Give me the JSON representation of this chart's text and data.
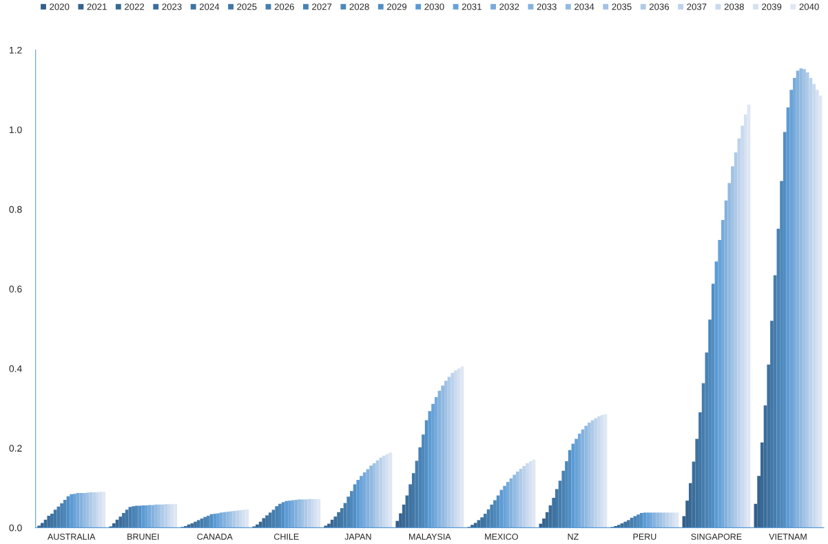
{
  "chart_data": {
    "type": "bar",
    "categories": [
      "AUSTRALIA",
      "BRUNEI",
      "CANADA",
      "CHILE",
      "JAPAN",
      "MALAYSIA",
      "MEXICO",
      "NZ",
      "PERU",
      "SINGAPORE",
      "VIETNAM"
    ],
    "series": [
      {
        "name": "2020",
        "color": "#325f8a",
        "values": [
          0.005,
          0.003,
          0.002,
          0.003,
          0.005,
          0.017,
          0.002,
          0.01,
          0.002,
          0.029,
          0.06
        ]
      },
      {
        "name": "2021",
        "color": "#35638f",
        "values": [
          0.012,
          0.011,
          0.004,
          0.008,
          0.01,
          0.036,
          0.007,
          0.023,
          0.004,
          0.068,
          0.13
        ]
      },
      {
        "name": "2022",
        "color": "#386894",
        "values": [
          0.02,
          0.02,
          0.008,
          0.015,
          0.02,
          0.058,
          0.012,
          0.039,
          0.007,
          0.112,
          0.214
        ]
      },
      {
        "name": "2023",
        "color": "#3b6d9a",
        "values": [
          0.03,
          0.028,
          0.011,
          0.024,
          0.028,
          0.081,
          0.019,
          0.056,
          0.011,
          0.166,
          0.307
        ]
      },
      {
        "name": "2024",
        "color": "#3e72a0",
        "values": [
          0.035,
          0.037,
          0.015,
          0.031,
          0.039,
          0.109,
          0.026,
          0.075,
          0.015,
          0.223,
          0.41
        ]
      },
      {
        "name": "2025",
        "color": "#4177a6",
        "values": [
          0.045,
          0.045,
          0.019,
          0.038,
          0.049,
          0.137,
          0.035,
          0.097,
          0.019,
          0.29,
          0.52
        ]
      },
      {
        "name": "2026",
        "color": "#457dad",
        "values": [
          0.053,
          0.052,
          0.023,
          0.045,
          0.062,
          0.168,
          0.046,
          0.118,
          0.025,
          0.363,
          0.634
        ]
      },
      {
        "name": "2027",
        "color": "#4982b4",
        "values": [
          0.061,
          0.054,
          0.027,
          0.054,
          0.078,
          0.202,
          0.058,
          0.143,
          0.029,
          0.44,
          0.751
        ]
      },
      {
        "name": "2028",
        "color": "#4d88bb",
        "values": [
          0.07,
          0.055,
          0.03,
          0.06,
          0.092,
          0.234,
          0.069,
          0.167,
          0.033,
          0.523,
          0.871
        ]
      },
      {
        "name": "2029",
        "color": "#528ec3",
        "values": [
          0.079,
          0.055,
          0.034,
          0.064,
          0.109,
          0.27,
          0.081,
          0.195,
          0.037,
          0.613,
          0.994
        ]
      },
      {
        "name": "2030",
        "color": "#5b9bd5",
        "values": [
          0.084,
          0.056,
          0.035,
          0.067,
          0.12,
          0.293,
          0.095,
          0.211,
          0.038,
          0.669,
          1.056
        ]
      },
      {
        "name": "2031",
        "color": "#68a2d8",
        "values": [
          0.085,
          0.056,
          0.036,
          0.068,
          0.13,
          0.311,
          0.105,
          0.223,
          0.038,
          0.723,
          1.1
        ]
      },
      {
        "name": "2032",
        "color": "#76aadb",
        "values": [
          0.087,
          0.057,
          0.038,
          0.069,
          0.139,
          0.328,
          0.115,
          0.236,
          0.038,
          0.773,
          1.13
        ]
      },
      {
        "name": "2033",
        "color": "#84b2de",
        "values": [
          0.087,
          0.057,
          0.039,
          0.07,
          0.147,
          0.344,
          0.124,
          0.247,
          0.038,
          0.822,
          1.148
        ]
      },
      {
        "name": "2034",
        "color": "#92bae1",
        "values": [
          0.087,
          0.058,
          0.04,
          0.071,
          0.156,
          0.357,
          0.133,
          0.256,
          0.038,
          0.866,
          1.154
        ]
      },
      {
        "name": "2035",
        "color": "#a0c2e4",
        "values": [
          0.088,
          0.058,
          0.041,
          0.071,
          0.162,
          0.369,
          0.141,
          0.264,
          0.038,
          0.908,
          1.152
        ]
      },
      {
        "name": "2036",
        "color": "#aecae8",
        "values": [
          0.089,
          0.058,
          0.042,
          0.071,
          0.169,
          0.379,
          0.148,
          0.27,
          0.038,
          0.943,
          1.144
        ]
      },
      {
        "name": "2037",
        "color": "#bcd2eb",
        "values": [
          0.089,
          0.059,
          0.043,
          0.072,
          0.176,
          0.389,
          0.155,
          0.275,
          0.038,
          0.978,
          1.13
        ]
      },
      {
        "name": "2038",
        "color": "#c9daee",
        "values": [
          0.089,
          0.059,
          0.044,
          0.072,
          0.181,
          0.395,
          0.162,
          0.28,
          0.038,
          1.01,
          1.115
        ]
      },
      {
        "name": "2039",
        "color": "#d5e1f1",
        "values": [
          0.09,
          0.059,
          0.045,
          0.072,
          0.185,
          0.4,
          0.167,
          0.283,
          0.038,
          1.038,
          1.1
        ]
      },
      {
        "name": "2040",
        "color": "#dfe7f4",
        "values": [
          0.09,
          0.06,
          0.046,
          0.072,
          0.189,
          0.405,
          0.171,
          0.285,
          0.038,
          1.063,
          1.086
        ]
      }
    ],
    "ylim": [
      0,
      1.2
    ],
    "yticks": [
      {
        "value": 0,
        "label": "0.0"
      },
      {
        "value": 0.2,
        "label": "0.2"
      },
      {
        "value": 0.4,
        "label": "0.4"
      },
      {
        "value": 0.6,
        "label": "0.6"
      },
      {
        "value": 0.8,
        "label": "0.8"
      },
      {
        "value": 1.0,
        "label": "1.0"
      },
      {
        "value": 1.2,
        "label": "1.2"
      }
    ],
    "legend": "top"
  }
}
